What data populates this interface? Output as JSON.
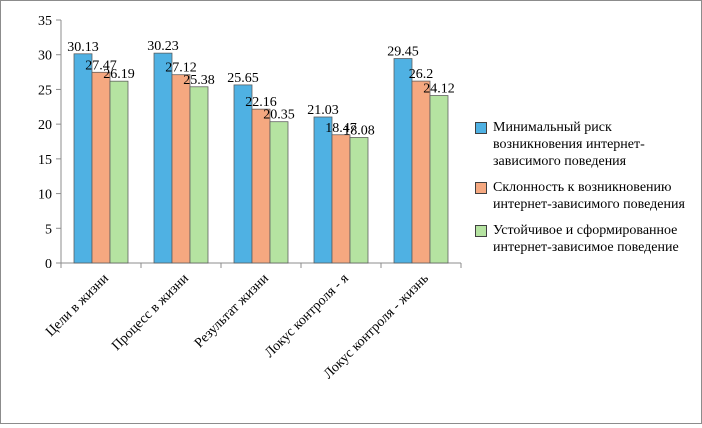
{
  "chart_data": {
    "type": "bar",
    "categories": [
      "Цели в жизни",
      "Процесс в жизни",
      "Результат жизни",
      "Локус контроля - я",
      "Локус контроля - жизнь"
    ],
    "series": [
      {
        "name": "Минимальный риск возникновения интернет-зависимого поведения",
        "values": [
          30.13,
          30.23,
          25.65,
          21.03,
          29.45
        ],
        "color": "#4fb1e3",
        "value_labels": [
          "30.13",
          "30.23",
          "25.65",
          "21.03",
          "29.45"
        ]
      },
      {
        "name": "Склонность к возникновению интернет-зависимого поведения",
        "values": [
          27.47,
          27.12,
          22.16,
          18.47,
          26.2
        ],
        "color": "#f5a880",
        "value_labels": [
          "27.47",
          "27.12",
          "22.16",
          "18.47",
          "26.2"
        ]
      },
      {
        "name": "Устойчивое и сформированное интернет-зависимое поведение",
        "values": [
          26.19,
          25.38,
          20.35,
          18.08,
          24.12
        ],
        "color": "#b5e3a1",
        "value_labels": [
          "26.19",
          "25.38",
          "20.35",
          "18.08",
          "24.12"
        ]
      }
    ],
    "ylim": [
      0,
      35
    ],
    "yticks": [
      0,
      5,
      10,
      15,
      20,
      25,
      30,
      35
    ],
    "grid": false,
    "legend": "right",
    "title": "",
    "xlabel": "",
    "ylabel": ""
  }
}
